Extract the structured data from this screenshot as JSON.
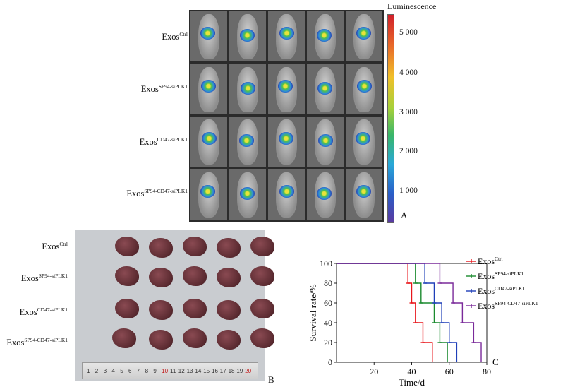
{
  "panel_a": {
    "colorbar_title": "Luminescence",
    "colorbar_ticks": [
      "5 000",
      "4 000",
      "3 000",
      "2 000",
      "1 000"
    ],
    "panel_label": "A",
    "groups": [
      {
        "base": "Exos",
        "sup": "Ctrl"
      },
      {
        "base": "Exos",
        "sup": "SP94-siPLK1"
      },
      {
        "base": "Exos",
        "sup": "CD47-siPLK1"
      },
      {
        "base": "Exos",
        "sup": "SP94-CD47-siPLK1"
      }
    ]
  },
  "panel_b": {
    "panel_label": "B",
    "ruler_numbers": [
      "1",
      "2",
      "3",
      "4",
      "5",
      "6",
      "7",
      "8",
      "9",
      "10",
      "11",
      "12",
      "13",
      "14",
      "15",
      "16",
      "17",
      "18",
      "19",
      "20"
    ]
  },
  "colors": {
    "ctrl": "#e8161b",
    "sp94": "#1a8a2e",
    "cd47": "#1f3fb8",
    "sp94cd47": "#7a2a9a"
  },
  "chart_data": {
    "type": "line",
    "subtype": "kaplan-meier step",
    "panel_label": "C",
    "xlabel": "Time/d",
    "ylabel": "Survival rate/%",
    "xlim": [
      0,
      80
    ],
    "ylim": [
      0,
      100
    ],
    "xticks": [
      "20",
      "40",
      "60",
      "80"
    ],
    "yticks": [
      "0",
      "20",
      "40",
      "60",
      "80",
      "100"
    ],
    "legend_position": "top-right",
    "series": [
      {
        "key": "ctrl",
        "name": "Exos",
        "sup": "Ctrl",
        "x": [
          0,
          38,
          40,
          42,
          46,
          51
        ],
        "y": [
          100,
          80,
          60,
          40,
          20,
          0
        ]
      },
      {
        "key": "sp94",
        "name": "Exos",
        "sup": "SP94-siPLK1",
        "x": [
          0,
          42,
          45,
          52,
          55,
          59
        ],
        "y": [
          100,
          80,
          60,
          40,
          20,
          0
        ]
      },
      {
        "key": "cd47",
        "name": "Exos",
        "sup": "CD47-siPLK1",
        "x": [
          0,
          47,
          52,
          56,
          60,
          64
        ],
        "y": [
          100,
          80,
          60,
          40,
          20,
          0
        ]
      },
      {
        "key": "sp94cd47",
        "name": "Exos",
        "sup": "SP94-CD47-siPLK1",
        "x": [
          0,
          55,
          62,
          67,
          73,
          77
        ],
        "y": [
          100,
          80,
          60,
          40,
          20,
          0
        ]
      }
    ]
  }
}
